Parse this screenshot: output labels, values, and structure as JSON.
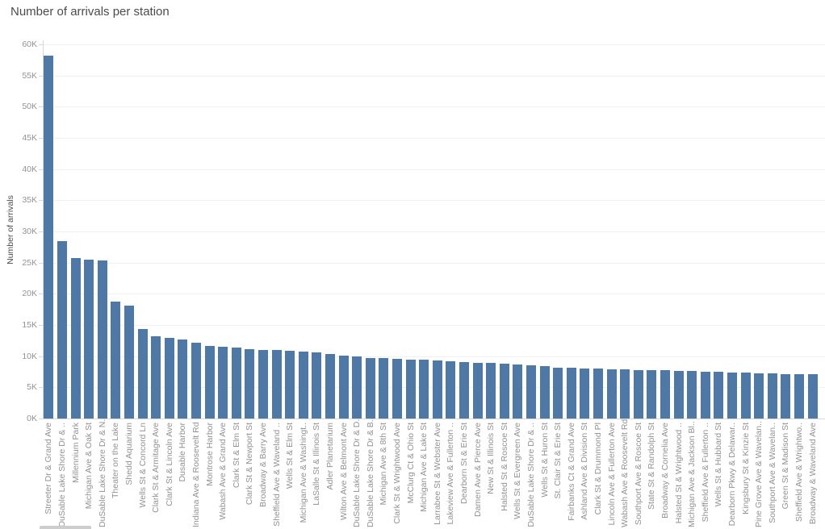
{
  "title": "Number of arrivals per station",
  "colors": {
    "bar": "#4e79a7",
    "gridline": "#f0f0f0",
    "axis_ruler": "#d8d8d8",
    "tick_label": "#929292",
    "axis_title": "#4d4d4d",
    "title": "#4b4b4b",
    "scrollbar_thumb": "#cdcdcd"
  },
  "chart_data": {
    "type": "bar",
    "title": "Number of arrivals per station",
    "xlabel": "",
    "ylabel": "Number of arrivals",
    "ylim": [
      0,
      60000
    ],
    "ytick_step": 5000,
    "ytick_labels": [
      "0K",
      "5K",
      "10K",
      "15K",
      "20K",
      "25K",
      "30K",
      "35K",
      "40K",
      "45K",
      "50K",
      "55K",
      "60K"
    ],
    "grid": true,
    "legend": "none",
    "categories": [
      "Streeter Dr & Grand Ave",
      "DuSable Lake Shore Dr & ..",
      "Millennium Park",
      "Michigan Ave & Oak St",
      "DuSable Lake Shore Dr & N..",
      "Theater on the Lake",
      "Shedd Aquarium",
      "Wells St & Concord Ln",
      "Clark St & Armitage Ave",
      "Clark St & Lincoln Ave",
      "Dusable Harbor",
      "Indiana Ave & Roosevelt Rd",
      "Montrose Harbor",
      "Wabash Ave & Grand Ave",
      "Clark St & Elm St",
      "Clark St & Newport St",
      "Broadway & Barry Ave",
      "Sheffield Ave & Waveland ..",
      "Wells St & Elm St",
      "Michigan Ave & Washingt..",
      "LaSalle St & Illinois St",
      "Adler Planetarium",
      "Wilton Ave & Belmont Ave",
      "DuSable Lake Shore Dr & D..",
      "DuSable Lake Shore Dr & B..",
      "Michigan Ave & 8th St",
      "Clark St & Wrightwood Ave",
      "McClurg Ct & Ohio St",
      "Michigan Ave & Lake St",
      "Larrabee St & Webster Ave",
      "Lakeview Ave & Fullerton ..",
      "Dearborn St & Erie St",
      "Damen Ave & Pierce Ave",
      "New St & Illinois St",
      "Halsted St & Roscoe St",
      "Wells St & Evergreen Ave",
      "DuSable Lake Shore Dr & ..",
      "Wells St & Huron St",
      "St. Clair St & Erie St",
      "Fairbanks Ct & Grand Ave",
      "Ashland Ave & Division St",
      "Clark St & Drummond Pl",
      "Lincoln Ave & Fullerton Ave",
      "Wabash Ave & Roosevelt Rd",
      "Southport Ave & Roscoe St",
      "State St & Randolph St",
      "Broadway & Cornelia Ave",
      "Halsted St & Wrightwood ..",
      "Michigan Ave & Jackson Bl..",
      "Sheffield Ave & Fullerton ..",
      "Wells St & Hubbard St",
      "Dearborn Pkwy & Delawar..",
      "Kingsbury St & Kinzie St",
      "Pine Grove Ave & Wavelan..",
      "Southport Ave & Wavelan..",
      "Green St & Madison St",
      "Sheffield Ave & Wrightwo..",
      "Broadway & Waveland Ave"
    ],
    "values": [
      58200,
      28400,
      25700,
      25500,
      25300,
      18700,
      18100,
      14400,
      13200,
      12900,
      12700,
      12100,
      11600,
      11500,
      11400,
      11100,
      11050,
      11000,
      10900,
      10700,
      10550,
      10300,
      10150,
      9950,
      9750,
      9650,
      9600,
      9500,
      9400,
      9300,
      9200,
      9100,
      8950,
      8900,
      8850,
      8700,
      8550,
      8400,
      8200,
      8100,
      8050,
      8000,
      7950,
      7900,
      7800,
      7750,
      7700,
      7650,
      7600,
      7500,
      7450,
      7400,
      7350,
      7300,
      7250,
      7150,
      7100,
      7050
    ]
  }
}
